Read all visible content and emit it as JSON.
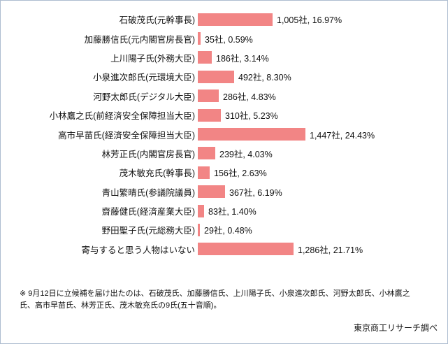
{
  "chart_data": {
    "type": "bar",
    "orientation": "horizontal",
    "title": "",
    "xlabel": "",
    "ylabel": "",
    "xlim": [
      0,
      1500
    ],
    "grid": false,
    "legend": "none",
    "bar_color": "#f28585",
    "categories": [
      "石破茂氏(元幹事長)",
      "加藤勝信氏(元内閣官房長官)",
      "上川陽子氏(外務大臣)",
      "小泉進次郎氏(元環境大臣)",
      "河野太郎氏(デジタル大臣)",
      "小林鷹之氏(前経済安全保障担当大臣)",
      "高市早苗氏(経済安全保障担当大臣)",
      "林芳正氏(内閣官房長官)",
      "茂木敏充氏(幹事長)",
      "青山繁晴氏(参議院議員)",
      "齋藤健氏(経済産業大臣)",
      "野田聖子氏(元総務大臣)",
      "寄与すると思う人物はいない"
    ],
    "values": [
      1005,
      35,
      186,
      492,
      286,
      310,
      1447,
      239,
      156,
      367,
      83,
      29,
      1286
    ],
    "percentages": [
      16.97,
      0.59,
      3.14,
      8.3,
      4.83,
      5.23,
      24.43,
      4.03,
      2.63,
      6.19,
      1.4,
      0.48,
      21.71
    ],
    "data_labels": [
      "1,005社, 16.97%",
      "35社, 0.59%",
      "186社, 3.14%",
      "492社, 8.30%",
      "286社, 4.83%",
      "310社, 5.23%",
      "1,447社, 24.43%",
      "239社, 4.03%",
      "156社, 2.63%",
      "367社, 6.19%",
      "83社, 1.40%",
      "29社, 0.48%",
      "1,286社, 21.71%"
    ]
  },
  "footnote": "※ 9月12日に立候補を届け出たのは、石破茂氏、加藤勝信氏、上川陽子氏、小泉進次郎氏、河野太郎氏、小林鷹之氏、高市早苗氏、林芳正氏、茂木敏充氏の9氏(五十音順)。",
  "source": "東京商工リサーチ調べ"
}
